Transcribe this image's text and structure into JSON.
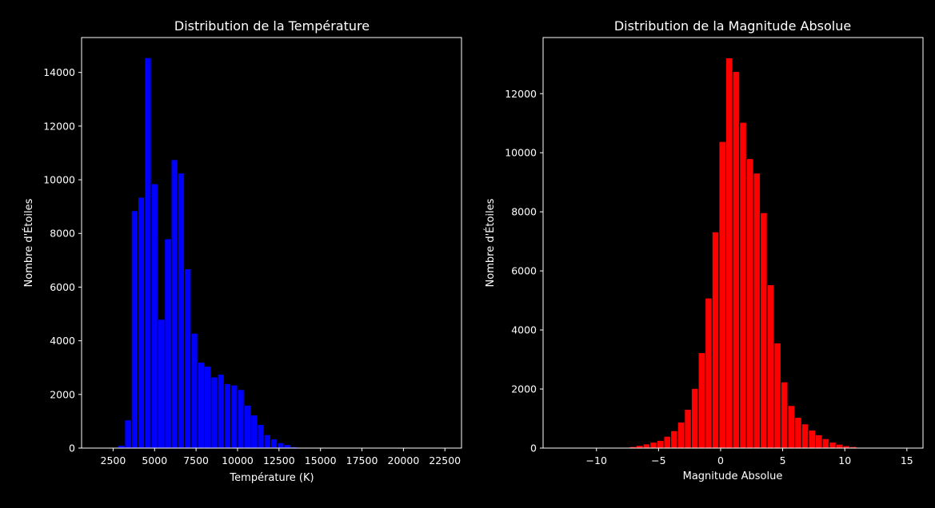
{
  "theme": {
    "background": "#000000",
    "foreground": "#ffffff"
  },
  "chart_data": [
    {
      "type": "bar",
      "title": "Distribution de la Température",
      "xlabel": "Température (K)",
      "ylabel": "Nombre d'Étoiles",
      "xlim": [
        600,
        23500
      ],
      "ylim": [
        0,
        15300
      ],
      "xticks": [
        2500,
        5000,
        7500,
        10000,
        12500,
        15000,
        17500,
        20000,
        22500
      ],
      "yticks": [
        0,
        2000,
        4000,
        6000,
        8000,
        10000,
        12000,
        14000
      ],
      "bar_color": "#0000ff",
      "edge_color": "#000000",
      "bin_width": 400,
      "bin_starts": [
        2400,
        2800,
        3200,
        3600,
        4000,
        4400,
        4800,
        5200,
        5600,
        6000,
        6400,
        6800,
        7200,
        7600,
        8000,
        8400,
        8800,
        9200,
        9600,
        10000,
        10400,
        10800,
        11200,
        11600,
        12000,
        12400,
        12800,
        13200,
        13600,
        14000,
        14400,
        14800,
        15200,
        15600,
        16000,
        16400,
        16800,
        17200,
        17600,
        18000,
        18400,
        18800,
        19200,
        19600,
        20000,
        20400,
        20800,
        21200
      ],
      "values": [
        5,
        100,
        1050,
        8850,
        9350,
        14550,
        9850,
        4800,
        7800,
        10750,
        10250,
        6680,
        4280,
        3200,
        3050,
        2650,
        2750,
        2400,
        2350,
        2180,
        1600,
        1230,
        880,
        500,
        340,
        200,
        130,
        50,
        25,
        10,
        5,
        3,
        2,
        1,
        1,
        0,
        0,
        0,
        0,
        0,
        0,
        0,
        0,
        0,
        0,
        0,
        0,
        0
      ]
    },
    {
      "type": "bar",
      "title": "Distribution de la Magnitude Absolue",
      "xlabel": "Magnitude Absolue",
      "ylabel": "Nombre d'Étoiles",
      "xlim": [
        -14.3,
        16.3
      ],
      "ylim": [
        0,
        13900
      ],
      "xticks": [
        -10,
        -5,
        0,
        5,
        10,
        15
      ],
      "yticks": [
        0,
        2000,
        4000,
        6000,
        8000,
        10000,
        12000
      ],
      "bar_color": "#ff0000",
      "edge_color": "#000000",
      "bin_width": 0.555,
      "bin_starts": [
        -12.9,
        -12.345,
        -11.79,
        -11.235,
        -10.68,
        -10.125,
        -9.57,
        -9.015,
        -8.46,
        -7.905,
        -7.35,
        -6.795,
        -6.24,
        -5.685,
        -5.13,
        -4.575,
        -4.02,
        -3.465,
        -2.91,
        -2.355,
        -1.8,
        -1.245,
        -0.69,
        -0.135,
        0.42,
        0.975,
        1.53,
        2.085,
        2.64,
        3.195,
        3.75,
        4.305,
        4.86,
        5.415,
        5.97,
        6.525,
        7.08,
        7.635,
        8.19,
        8.745,
        9.3,
        9.855,
        10.41,
        10.965,
        11.52,
        12.075,
        12.63,
        13.185,
        13.74,
        14.295,
        14.85
      ],
      "values": [
        0,
        0,
        0,
        0,
        0,
        0,
        0,
        2,
        5,
        20,
        50,
        90,
        140,
        200,
        260,
        400,
        590,
        880,
        1310,
        2020,
        3230,
        5080,
        7320,
        10380,
        13210,
        12750,
        11030,
        9800,
        9310,
        7970,
        5530,
        3560,
        2240,
        1440,
        1040,
        820,
        610,
        450,
        320,
        200,
        130,
        80,
        50,
        20,
        10,
        5,
        2,
        0,
        0,
        0,
        0
      ]
    }
  ]
}
